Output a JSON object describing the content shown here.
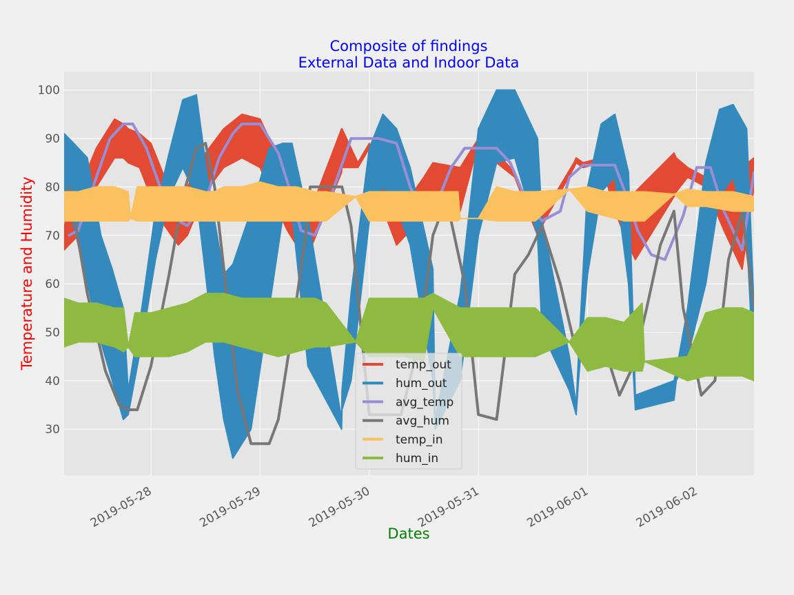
{
  "chart_data": {
    "type": "line",
    "title": "Composite of findings",
    "subtitle": "External Data and Indoor Data",
    "xlabel": "Dates",
    "ylabel": "Temperature and Humidity",
    "xlim": [
      "2019-05-27 04:54",
      "2019-06-02 12:36"
    ],
    "ylim": [
      20.5,
      103.8
    ],
    "x_ticks": [
      "2019-05-28",
      "2019-05-29",
      "2019-05-30",
      "2019-05-31",
      "2019-06-01",
      "2019-06-02"
    ],
    "y_ticks": [
      30,
      40,
      50,
      60,
      70,
      80,
      90,
      100
    ],
    "grid": true,
    "legend_position": "bottom-center",
    "colors": {
      "temp_out": "#e24a33",
      "hum_out": "#348abd",
      "avg_temp": "#988ed5",
      "avg_hum": "#777777",
      "temp_in": "#fbc15e",
      "hum_in": "#8eba42",
      "title": "#0000ff",
      "xlabel": "#008000",
      "ylabel": "#ff0000"
    },
    "series": [
      {
        "name": "temp_out",
        "band": true,
        "x": [
          "2019-05-27 04:54",
          "2019-05-27 08:00",
          "2019-05-27 12:00",
          "2019-05-27 16:00",
          "2019-05-27 17:55",
          "2019-05-27 19:00",
          "2019-05-27 21:30",
          "2019-05-28 00:00",
          "2019-05-28 03:00",
          "2019-05-28 06:00",
          "2019-05-28 08:00",
          "2019-05-28 12:00",
          "2019-05-28 16:00",
          "2019-05-28 20:00",
          "2019-05-29 00:00",
          "2019-05-29 04:00",
          "2019-05-29 06:00",
          "2019-05-29 08:00",
          "2019-05-29 10:30",
          "2019-05-29 11:00",
          "2019-05-29 17:55",
          "2019-05-29 18:00",
          "2019-05-29 21:30",
          "2019-05-30 00:00",
          "2019-05-30 04:00",
          "2019-05-30 06:00",
          "2019-05-30 09:00",
          "2019-05-30 12:00",
          "2019-05-30 14:00",
          "2019-05-30 20:00",
          "2019-05-31 00:00",
          "2019-05-31 04:00",
          "2019-05-31 08:00",
          "2019-05-31 13:00",
          "2019-05-31 14:00",
          "2019-05-31 21:00",
          "2019-05-31 21:30",
          "2019-05-31 23:00",
          "2019-06-01 03:00",
          "2019-06-01 06:00",
          "2019-06-01 09:00",
          "2019-06-01 10:30",
          "2019-06-01 19:00",
          "2019-06-01 19:30",
          "2019-06-01 22:00",
          "2019-06-02 02:00",
          "2019-06-02 06:00",
          "2019-06-02 10:00",
          "2019-06-02 12:36"
        ],
        "high": [
          72,
          79,
          88,
          94,
          93,
          92,
          91,
          89,
          82,
          77,
          80,
          87,
          92,
          95,
          94,
          86,
          81,
          77,
          74,
          75,
          92,
          92,
          85,
          89,
          80,
          76,
          78,
          82,
          85,
          84,
          90,
          87,
          83,
          72,
          74,
          85,
          86,
          85,
          86,
          84,
          78,
          79,
          87,
          86,
          84,
          82,
          80,
          84,
          86
        ],
        "low": [
          67,
          70,
          80,
          86,
          86,
          85,
          84,
          78,
          72,
          68,
          70,
          79,
          84,
          86,
          84,
          75,
          71,
          68,
          66,
          67,
          83,
          84,
          84,
          88,
          73,
          68,
          71,
          74,
          76,
          75,
          89,
          85,
          82,
          70,
          72,
          84,
          85,
          84,
          85,
          75,
          68,
          65,
          78,
          79,
          82,
          80,
          71,
          63,
          80
        ]
      },
      {
        "name": "hum_out",
        "band": true,
        "x": [
          "2019-05-27 04:54",
          "2019-05-27 07:00",
          "2019-05-27 10:00",
          "2019-05-27 13:00",
          "2019-05-27 15:30",
          "2019-05-27 17:55",
          "2019-05-27 19:00",
          "2019-05-27 22:00",
          "2019-05-28 01:00",
          "2019-05-28 04:00",
          "2019-05-28 07:00",
          "2019-05-28 10:00",
          "2019-05-28 12:00",
          "2019-05-28 14:00",
          "2019-05-28 16:00",
          "2019-05-28 18:00",
          "2019-05-28 22:00",
          "2019-05-29 02:00",
          "2019-05-29 05:00",
          "2019-05-29 07:00",
          "2019-05-29 10:30",
          "2019-05-29 17:55",
          "2019-05-29 18:00",
          "2019-05-29 20:00",
          "2019-05-30 00:00",
          "2019-05-30 03:00",
          "2019-05-30 06:00",
          "2019-05-30 09:00",
          "2019-05-30 14:00",
          "2019-05-30 14:30",
          "2019-05-30 20:00",
          "2019-05-31 00:00",
          "2019-05-31 04:00",
          "2019-05-31 08:00",
          "2019-05-31 13:00",
          "2019-05-31 14:00",
          "2019-05-31 20:00",
          "2019-05-31 21:30",
          "2019-05-31 22:00",
          "2019-06-01 00:00",
          "2019-06-01 03:00",
          "2019-06-01 06:00",
          "2019-06-01 09:00",
          "2019-06-01 10:30",
          "2019-06-01 19:00",
          "2019-06-01 19:30",
          "2019-06-01 22:00",
          "2019-06-02 02:00",
          "2019-06-02 05:00",
          "2019-06-02 08:00",
          "2019-06-02 11:00",
          "2019-06-02 12:36"
        ],
        "high": [
          91,
          89,
          86,
          70,
          63,
          55,
          38,
          55,
          75,
          87,
          98,
          99,
          85,
          73,
          62,
          64,
          75,
          88,
          89,
          89,
          74,
          32,
          38,
          58,
          88,
          95,
          92,
          84,
          63,
          32,
          58,
          92,
          100,
          100,
          90,
          73,
          45,
          35,
          45,
          80,
          93,
          95,
          83,
          37,
          40,
          42,
          55,
          85,
          96,
          97,
          92,
          55
        ],
        "low": [
          79,
          72,
          60,
          48,
          40,
          32,
          33,
          48,
          65,
          78,
          84,
          78,
          62,
          45,
          32,
          24,
          30,
          55,
          74,
          75,
          43,
          30,
          34,
          40,
          73,
          80,
          76,
          68,
          40,
          30,
          40,
          70,
          85,
          86,
          70,
          50,
          38,
          33,
          40,
          62,
          79,
          82,
          60,
          34,
          36,
          40,
          45,
          60,
          78,
          82,
          70,
          40
        ]
      },
      {
        "name": "avg_temp",
        "x": [
          "2019-05-27 06:00",
          "2019-05-27 08:00",
          "2019-05-27 12:00",
          "2019-05-27 15:00",
          "2019-05-27 18:00",
          "2019-05-27 20:00",
          "2019-05-27 23:00",
          "2019-05-28 02:00",
          "2019-05-28 06:00",
          "2019-05-28 08:00",
          "2019-05-28 12:00",
          "2019-05-28 15:00",
          "2019-05-28 18:00",
          "2019-05-28 20:00",
          "2019-05-29 00:00",
          "2019-05-29 04:00",
          "2019-05-29 07:00",
          "2019-05-29 09:00",
          "2019-05-29 12:00",
          "2019-05-29 14:00",
          "2019-05-29 20:00",
          "2019-05-29 22:00",
          "2019-05-30 02:00",
          "2019-05-30 06:00",
          "2019-05-30 09:00",
          "2019-05-30 12:00",
          "2019-05-30 15:00",
          "2019-05-30 18:00",
          "2019-05-30 21:00",
          "2019-05-31 00:00",
          "2019-05-31 04:00",
          "2019-05-31 07:00",
          "2019-05-31 11:00",
          "2019-05-31 14:00",
          "2019-05-31 18:00",
          "2019-05-31 20:00",
          "2019-05-31 23:00",
          "2019-06-01 02:00",
          "2019-06-01 06:00",
          "2019-06-01 09:00",
          "2019-06-01 11:00",
          "2019-06-01 14:00",
          "2019-06-01 17:00",
          "2019-06-01 21:00",
          "2019-06-02 00:00",
          "2019-06-02 03:00",
          "2019-06-02 06:00",
          "2019-06-02 10:00",
          "2019-06-02 12:36"
        ],
        "y": [
          70,
          71,
          82,
          90,
          93,
          93,
          88,
          80,
          73,
          72,
          77,
          86,
          91,
          93,
          93,
          87,
          78,
          71,
          70,
          74,
          90,
          90,
          90,
          89,
          80,
          74,
          77,
          84,
          88,
          88,
          88,
          85,
          76,
          73,
          75,
          82,
          84.5,
          84.5,
          84.5,
          77,
          71,
          66,
          65,
          74,
          84,
          84,
          75,
          67,
          83
        ]
      },
      {
        "name": "avg_hum",
        "x": [
          "2019-05-27 04:54",
          "2019-05-27 06:00",
          "2019-05-27 10:00",
          "2019-05-27 14:00",
          "2019-05-27 17:00",
          "2019-05-27 19:00",
          "2019-05-27 21:00",
          "2019-05-28 00:00",
          "2019-05-28 04:00",
          "2019-05-28 07:00",
          "2019-05-28 10:00",
          "2019-05-28 12:00",
          "2019-05-28 14:00",
          "2019-05-28 17:00",
          "2019-05-28 19:00",
          "2019-05-28 22:00",
          "2019-05-29 02:00",
          "2019-05-29 04:00",
          "2019-05-29 07:00",
          "2019-05-29 10:00",
          "2019-05-29 11:00",
          "2019-05-29 18:00",
          "2019-05-29 20:00",
          "2019-05-30 00:00",
          "2019-05-30 04:00",
          "2019-05-30 07:00",
          "2019-05-30 11:00",
          "2019-05-30 14:00",
          "2019-05-30 16:00",
          "2019-05-30 18:00",
          "2019-05-30 21:00",
          "2019-05-31 00:00",
          "2019-05-31 04:00",
          "2019-05-31 08:00",
          "2019-05-31 11:00",
          "2019-05-31 14:00",
          "2019-05-31 18:00",
          "2019-05-31 21:00",
          "2019-05-31 23:00",
          "2019-06-01 01:00",
          "2019-06-01 04:00",
          "2019-06-01 07:00",
          "2019-06-01 10:00",
          "2019-06-01 13:00",
          "2019-06-01 16:00",
          "2019-06-01 19:00",
          "2019-06-01 21:00",
          "2019-06-02 01:00",
          "2019-06-02 04:00",
          "2019-06-02 07:00",
          "2019-06-02 10:00",
          "2019-06-02 12:36"
        ],
        "y": [
          73,
          80,
          58,
          42,
          35,
          34,
          34,
          43,
          62,
          78,
          88,
          89,
          80,
          55,
          38,
          27,
          27,
          32,
          50,
          70,
          80,
          80,
          72,
          33,
          33,
          33,
          48,
          70,
          75,
          73,
          60,
          33,
          32,
          62,
          66,
          72,
          60,
          48,
          48,
          46,
          46,
          37,
          43,
          55,
          68,
          75,
          55,
          37,
          40,
          65,
          75,
          55
        ]
      },
      {
        "name": "temp_in",
        "band": true,
        "x": [
          "2019-05-27 04:54",
          "2019-05-27 08:00",
          "2019-05-27 12:00",
          "2019-05-27 16:00",
          "2019-05-27 19:00",
          "2019-05-27 19:30",
          "2019-05-27 21:00",
          "2019-05-28 00:00",
          "2019-05-28 04:00",
          "2019-05-28 08:00",
          "2019-05-28 12:00",
          "2019-05-28 14:00",
          "2019-05-28 16:00",
          "2019-05-28 20:00",
          "2019-05-29 00:00",
          "2019-05-29 04:00",
          "2019-05-29 08:00",
          "2019-05-29 12:00",
          "2019-05-29 14:30",
          "2019-05-29 21:00",
          "2019-05-30 00:00",
          "2019-05-30 04:00",
          "2019-05-30 08:00",
          "2019-05-30 12:00",
          "2019-05-30 13:30",
          "2019-05-30 19:30",
          "2019-05-30 20:00",
          "2019-05-31 00:00",
          "2019-05-31 04:00",
          "2019-05-31 08:00",
          "2019-05-31 12:00",
          "2019-05-31 12:30",
          "2019-05-31 20:00",
          "2019-06-01 00:00",
          "2019-06-01 04:00",
          "2019-06-01 08:00",
          "2019-06-01 12:00",
          "2019-06-01 12:30",
          "2019-06-01 19:00",
          "2019-06-01 22:00",
          "2019-06-02 02:00",
          "2019-06-02 08:00",
          "2019-06-02 12:36"
        ],
        "high": [
          79,
          79,
          80,
          80,
          79,
          73.5,
          80,
          80,
          80,
          80,
          79,
          79,
          80,
          80,
          81,
          80,
          80,
          79,
          79,
          78,
          79,
          79,
          79,
          79,
          79,
          79,
          73.5,
          73.5,
          80,
          79,
          79,
          79,
          79.5,
          80,
          79,
          79,
          79,
          79,
          78.5,
          79.5,
          79,
          79,
          78
        ],
        "low": [
          73,
          73,
          73,
          73,
          73,
          73.5,
          73,
          73,
          73,
          73,
          73,
          73,
          73,
          73,
          73,
          73,
          73,
          73,
          73,
          78,
          73,
          73,
          73,
          73,
          73,
          73,
          73.5,
          73.5,
          73,
          73,
          73,
          73,
          79.5,
          75,
          74,
          73,
          73,
          73,
          78.5,
          76,
          76,
          75,
          75
        ]
      },
      {
        "name": "hum_in",
        "band": true,
        "x": [
          "2019-05-27 04:54",
          "2019-05-27 08:00",
          "2019-05-27 12:00",
          "2019-05-27 16:00",
          "2019-05-27 18:00",
          "2019-05-27 19:00",
          "2019-05-27 20:30",
          "2019-05-28 00:00",
          "2019-05-28 04:00",
          "2019-05-28 08:00",
          "2019-05-28 12:00",
          "2019-05-28 16:00",
          "2019-05-28 20:00",
          "2019-05-29 00:00",
          "2019-05-29 04:00",
          "2019-05-29 08:00",
          "2019-05-29 12:00",
          "2019-05-29 14:30",
          "2019-05-29 21:00",
          "2019-05-30 00:00",
          "2019-05-30 04:00",
          "2019-05-30 08:00",
          "2019-05-30 12:00",
          "2019-05-30 14:00",
          "2019-05-30 20:00",
          "2019-05-31 00:00",
          "2019-05-31 04:00",
          "2019-05-31 08:00",
          "2019-05-31 12:30",
          "2019-05-31 20:00",
          "2019-06-01 00:00",
          "2019-06-01 04:00",
          "2019-06-01 08:00",
          "2019-06-01 12:00",
          "2019-06-01 12:30",
          "2019-06-01 22:00",
          "2019-06-02 02:00",
          "2019-06-02 06:00",
          "2019-06-02 10:00",
          "2019-06-02 12:36"
        ],
        "high": [
          57,
          56,
          56,
          55,
          55,
          47,
          54,
          54,
          55,
          56,
          58,
          58,
          57,
          57,
          57,
          57,
          57,
          56,
          48,
          57,
          57,
          57,
          57,
          58,
          55,
          55,
          55,
          55,
          55,
          48,
          53,
          53,
          52,
          56,
          44,
          45,
          54,
          55,
          55,
          54
        ],
        "low": [
          47,
          48,
          48,
          47,
          46,
          47,
          45,
          45,
          45,
          46,
          48,
          48,
          47,
          46,
          45,
          46,
          47,
          47,
          48,
          45,
          45,
          45,
          44,
          55,
          45,
          45,
          45,
          45,
          45,
          48,
          42,
          43,
          42,
          42,
          44,
          40,
          41,
          41,
          41,
          40
        ]
      }
    ],
    "legend": [
      "temp_out",
      "hum_out",
      "avg_temp",
      "avg_hum",
      "temp_in",
      "hum_in"
    ]
  }
}
